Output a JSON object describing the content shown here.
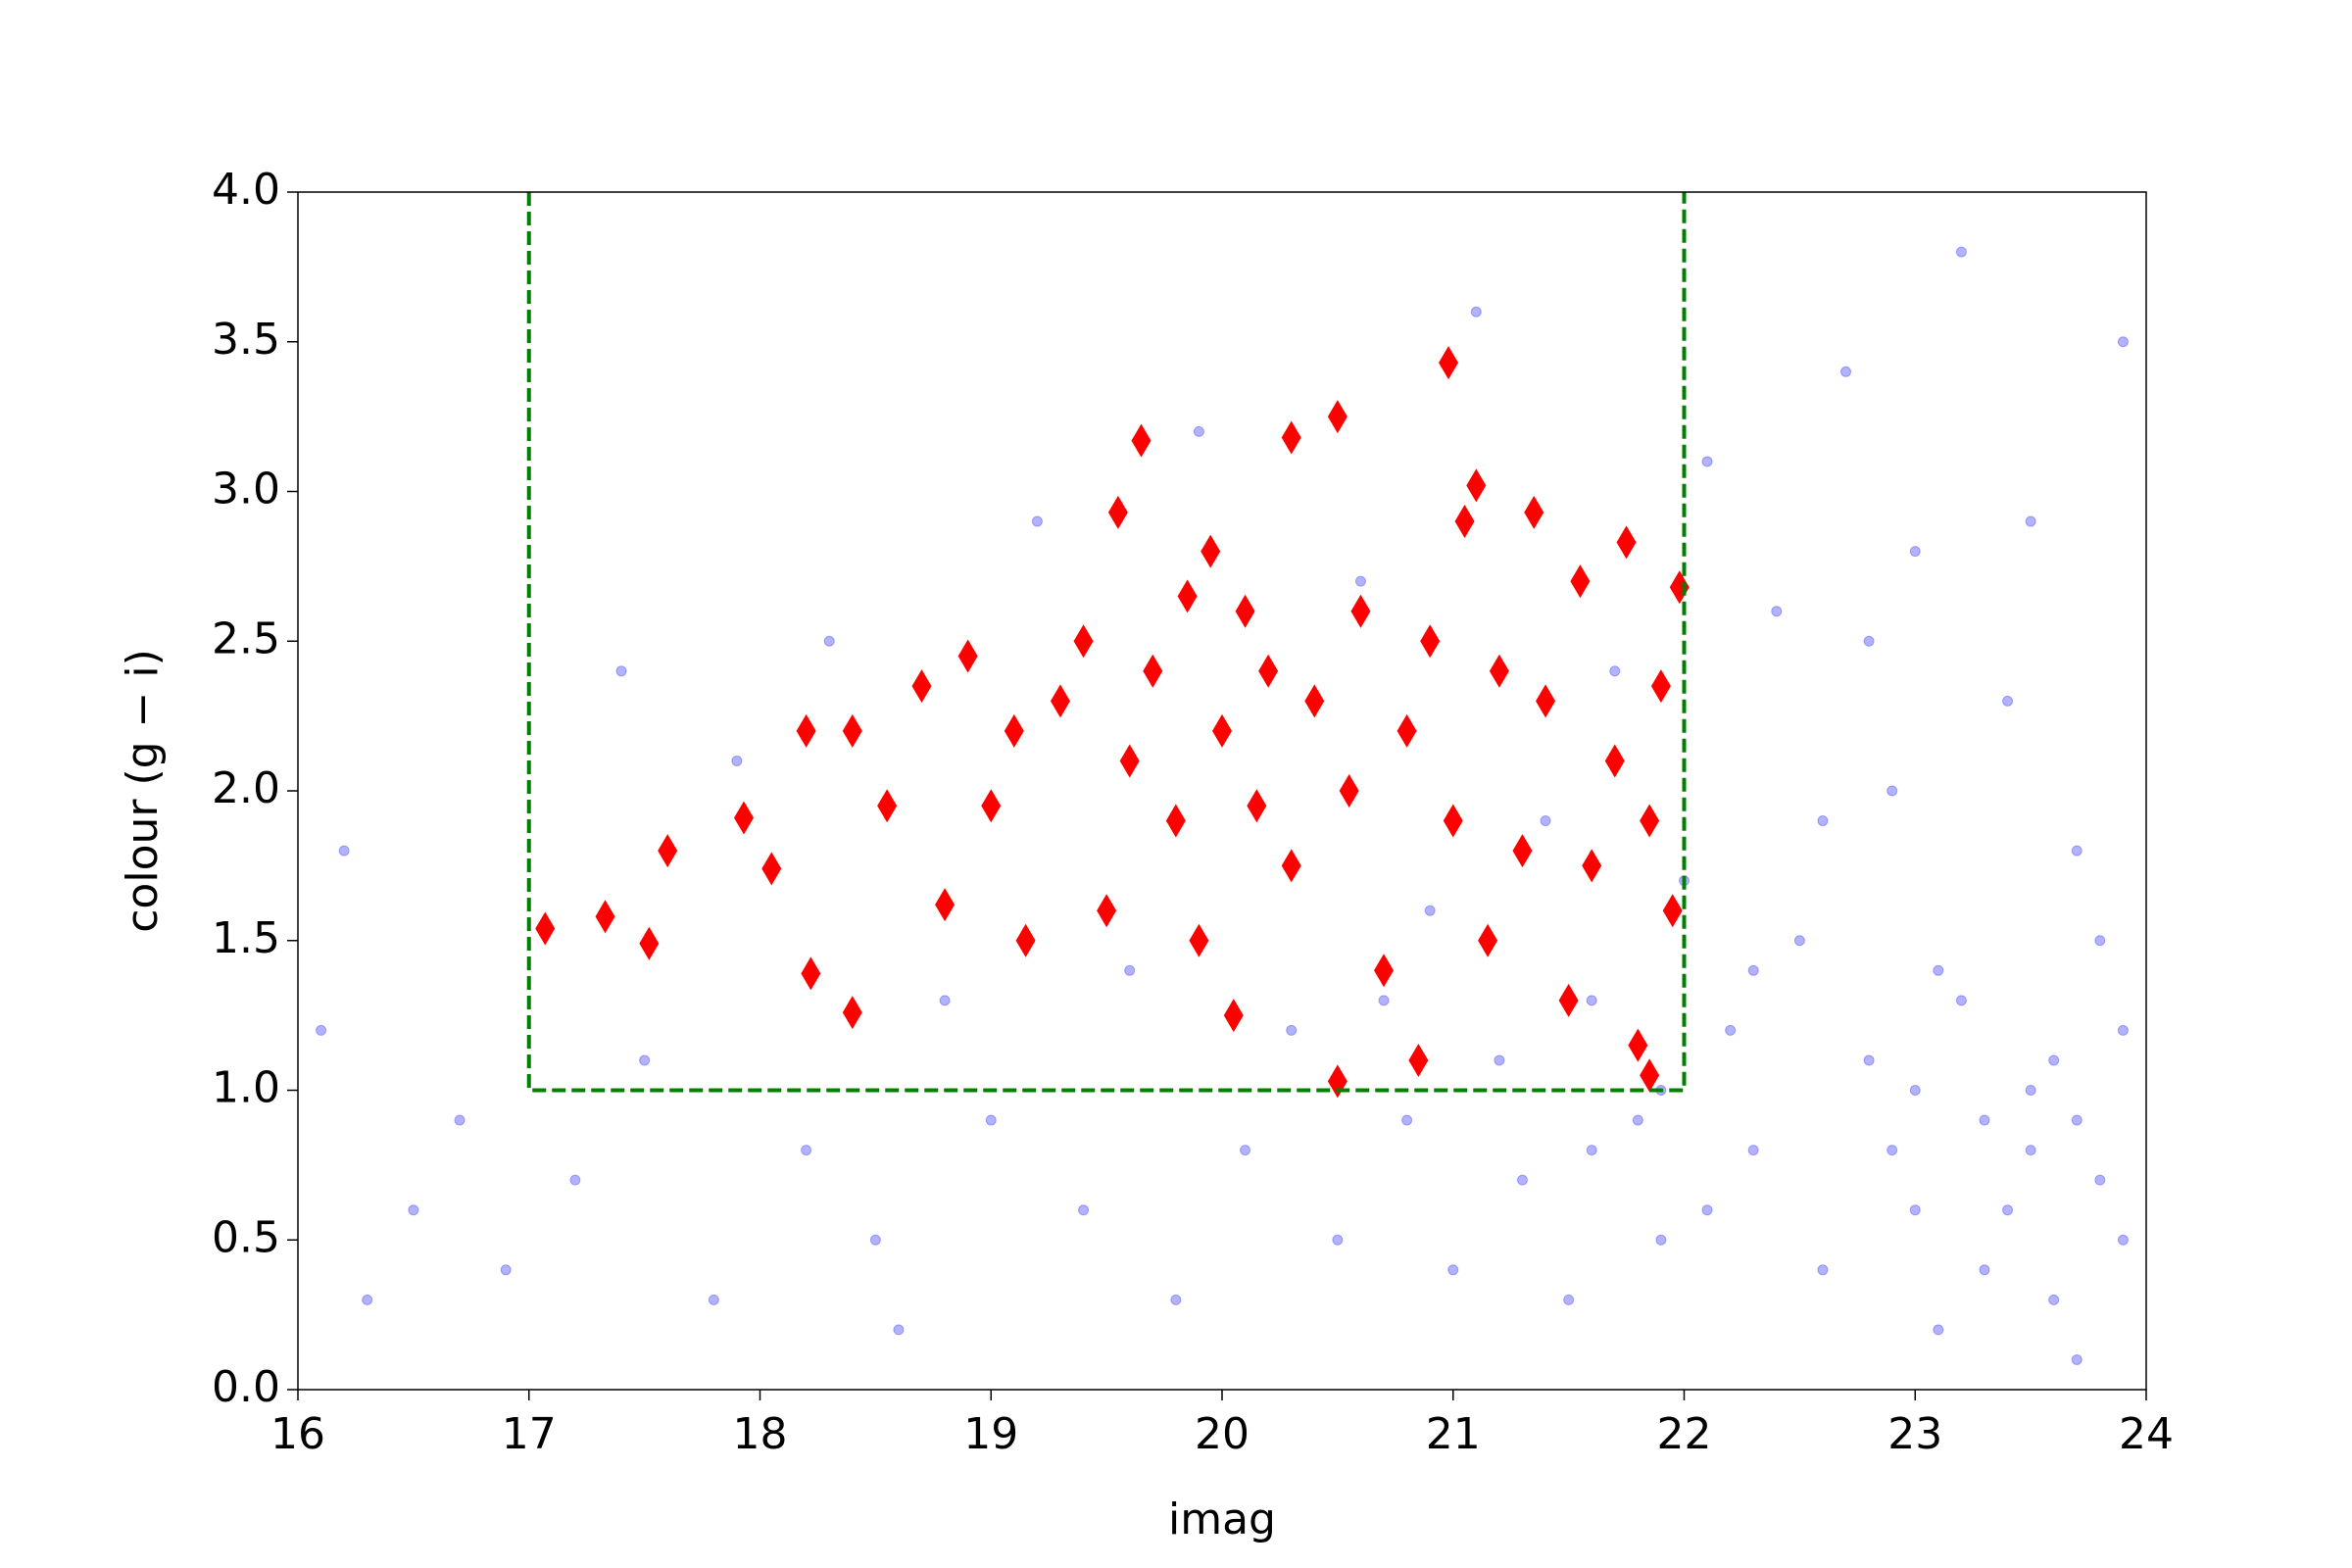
{
  "chart_data": {
    "type": "scatter",
    "xlabel": "imag",
    "ylabel": "colour (g − i)",
    "xlim": [
      16,
      24
    ],
    "ylim": [
      0,
      4
    ],
    "xticks": [
      16,
      17,
      18,
      19,
      20,
      21,
      22,
      23,
      24
    ],
    "yticks": [
      {
        "value": 0,
        "label": "0.0"
      },
      0.5,
      {
        "value": 1,
        "label": "1.0"
      },
      1.5,
      {
        "value": 2,
        "label": "2.0"
      },
      2.5,
      {
        "value": 3,
        "label": "3.0"
      },
      3.5,
      {
        "value": 4,
        "label": "4.0"
      }
    ],
    "series": [
      {
        "type": "scatter",
        "marker": "o",
        "color": "#0000ff",
        "alpha": 0.3,
        "x": [
          16.1,
          16.3,
          16.5,
          16.2,
          16.7,
          16.9,
          17.2,
          17.5,
          17.8,
          17.4,
          17.9,
          18.2,
          18.5,
          18.3,
          18.8,
          18.6,
          19.0,
          19.2,
          19.4,
          19.6,
          19.8,
          19.9,
          20.1,
          20.3,
          20.5,
          20.6,
          20.8,
          20.9,
          21.0,
          21.1,
          21.2,
          21.3,
          21.4,
          21.5,
          21.6,
          21.7,
          21.8,
          21.9,
          22.0,
          22.1,
          22.2,
          22.3,
          22.4,
          22.5,
          22.6,
          22.7,
          22.8,
          22.9,
          23.0,
          23.1,
          23.2,
          23.3,
          23.4,
          23.5,
          23.6,
          23.7,
          23.8,
          23.9,
          23.5,
          23.9,
          23.0,
          23.4,
          23.7,
          23.8,
          23.6,
          23.9,
          23.2,
          23.3,
          22.9,
          23.1,
          23.7,
          23.5,
          22.6,
          22.8,
          23.0,
          22.3,
          21.9,
          22.1,
          21.6,
          20.7
        ],
        "y": [
          1.2,
          0.3,
          0.6,
          1.8,
          0.9,
          0.4,
          0.7,
          1.1,
          0.3,
          2.4,
          2.1,
          0.8,
          0.5,
          2.5,
          1.3,
          0.2,
          0.9,
          2.9,
          0.6,
          1.4,
          0.3,
          3.2,
          0.8,
          1.2,
          0.5,
          2.7,
          0.9,
          1.6,
          0.4,
          3.6,
          1.1,
          0.7,
          1.9,
          0.3,
          1.3,
          2.4,
          0.9,
          0.5,
          1.7,
          3.1,
          1.2,
          0.8,
          2.6,
          1.5,
          0.4,
          3.4,
          1.1,
          2.0,
          0.6,
          1.4,
          3.8,
          0.9,
          2.3,
          1.0,
          0.3,
          1.8,
          0.7,
          1.2,
          2.9,
          3.5,
          1.0,
          0.6,
          0.9,
          1.5,
          1.1,
          0.5,
          1.3,
          0.4,
          0.8,
          0.2,
          0.1,
          0.8,
          1.9,
          2.5,
          2.8,
          1.4,
          1.0,
          0.6,
          0.8,
          1.3
        ]
      },
      {
        "type": "scatter",
        "marker": "d",
        "color": "#ff0000",
        "x": [
          17.07,
          17.33,
          17.52,
          17.6,
          17.93,
          18.05,
          18.2,
          18.22,
          18.4,
          18.4,
          18.55,
          18.7,
          18.8,
          18.9,
          19.0,
          19.1,
          19.15,
          19.3,
          19.4,
          19.5,
          19.55,
          19.6,
          19.65,
          19.7,
          19.8,
          19.85,
          19.9,
          19.95,
          20.0,
          20.05,
          20.1,
          20.15,
          20.2,
          20.3,
          20.3,
          20.4,
          20.5,
          20.5,
          20.55,
          20.6,
          20.7,
          20.8,
          20.85,
          20.9,
          20.98,
          21.0,
          21.05,
          21.1,
          21.15,
          21.2,
          21.3,
          21.35,
          21.4,
          21.5,
          21.55,
          21.6,
          21.7,
          21.75,
          21.8,
          21.85,
          21.9,
          21.95,
          21.98,
          21.85
        ],
        "y": [
          1.54,
          1.58,
          1.49,
          1.8,
          1.91,
          1.74,
          2.2,
          1.39,
          1.26,
          2.2,
          1.95,
          2.35,
          1.62,
          2.45,
          1.95,
          2.2,
          1.5,
          2.3,
          2.5,
          1.6,
          2.93,
          2.1,
          3.17,
          2.4,
          1.9,
          2.65,
          1.5,
          2.8,
          2.2,
          1.25,
          2.6,
          1.95,
          2.4,
          3.18,
          1.75,
          2.3,
          3.25,
          1.03,
          2.0,
          2.6,
          1.4,
          2.2,
          1.1,
          2.5,
          3.43,
          1.9,
          2.9,
          3.02,
          1.5,
          2.4,
          1.8,
          2.93,
          2.3,
          1.3,
          2.7,
          1.75,
          2.1,
          2.83,
          1.15,
          1.9,
          2.35,
          1.6,
          2.68,
          1.05
        ]
      },
      {
        "type": "line",
        "linestyle": "dashed",
        "color": "#008000",
        "x": [
          17,
          17,
          22,
          22
        ],
        "y": [
          4,
          1,
          1,
          4
        ]
      }
    ]
  }
}
